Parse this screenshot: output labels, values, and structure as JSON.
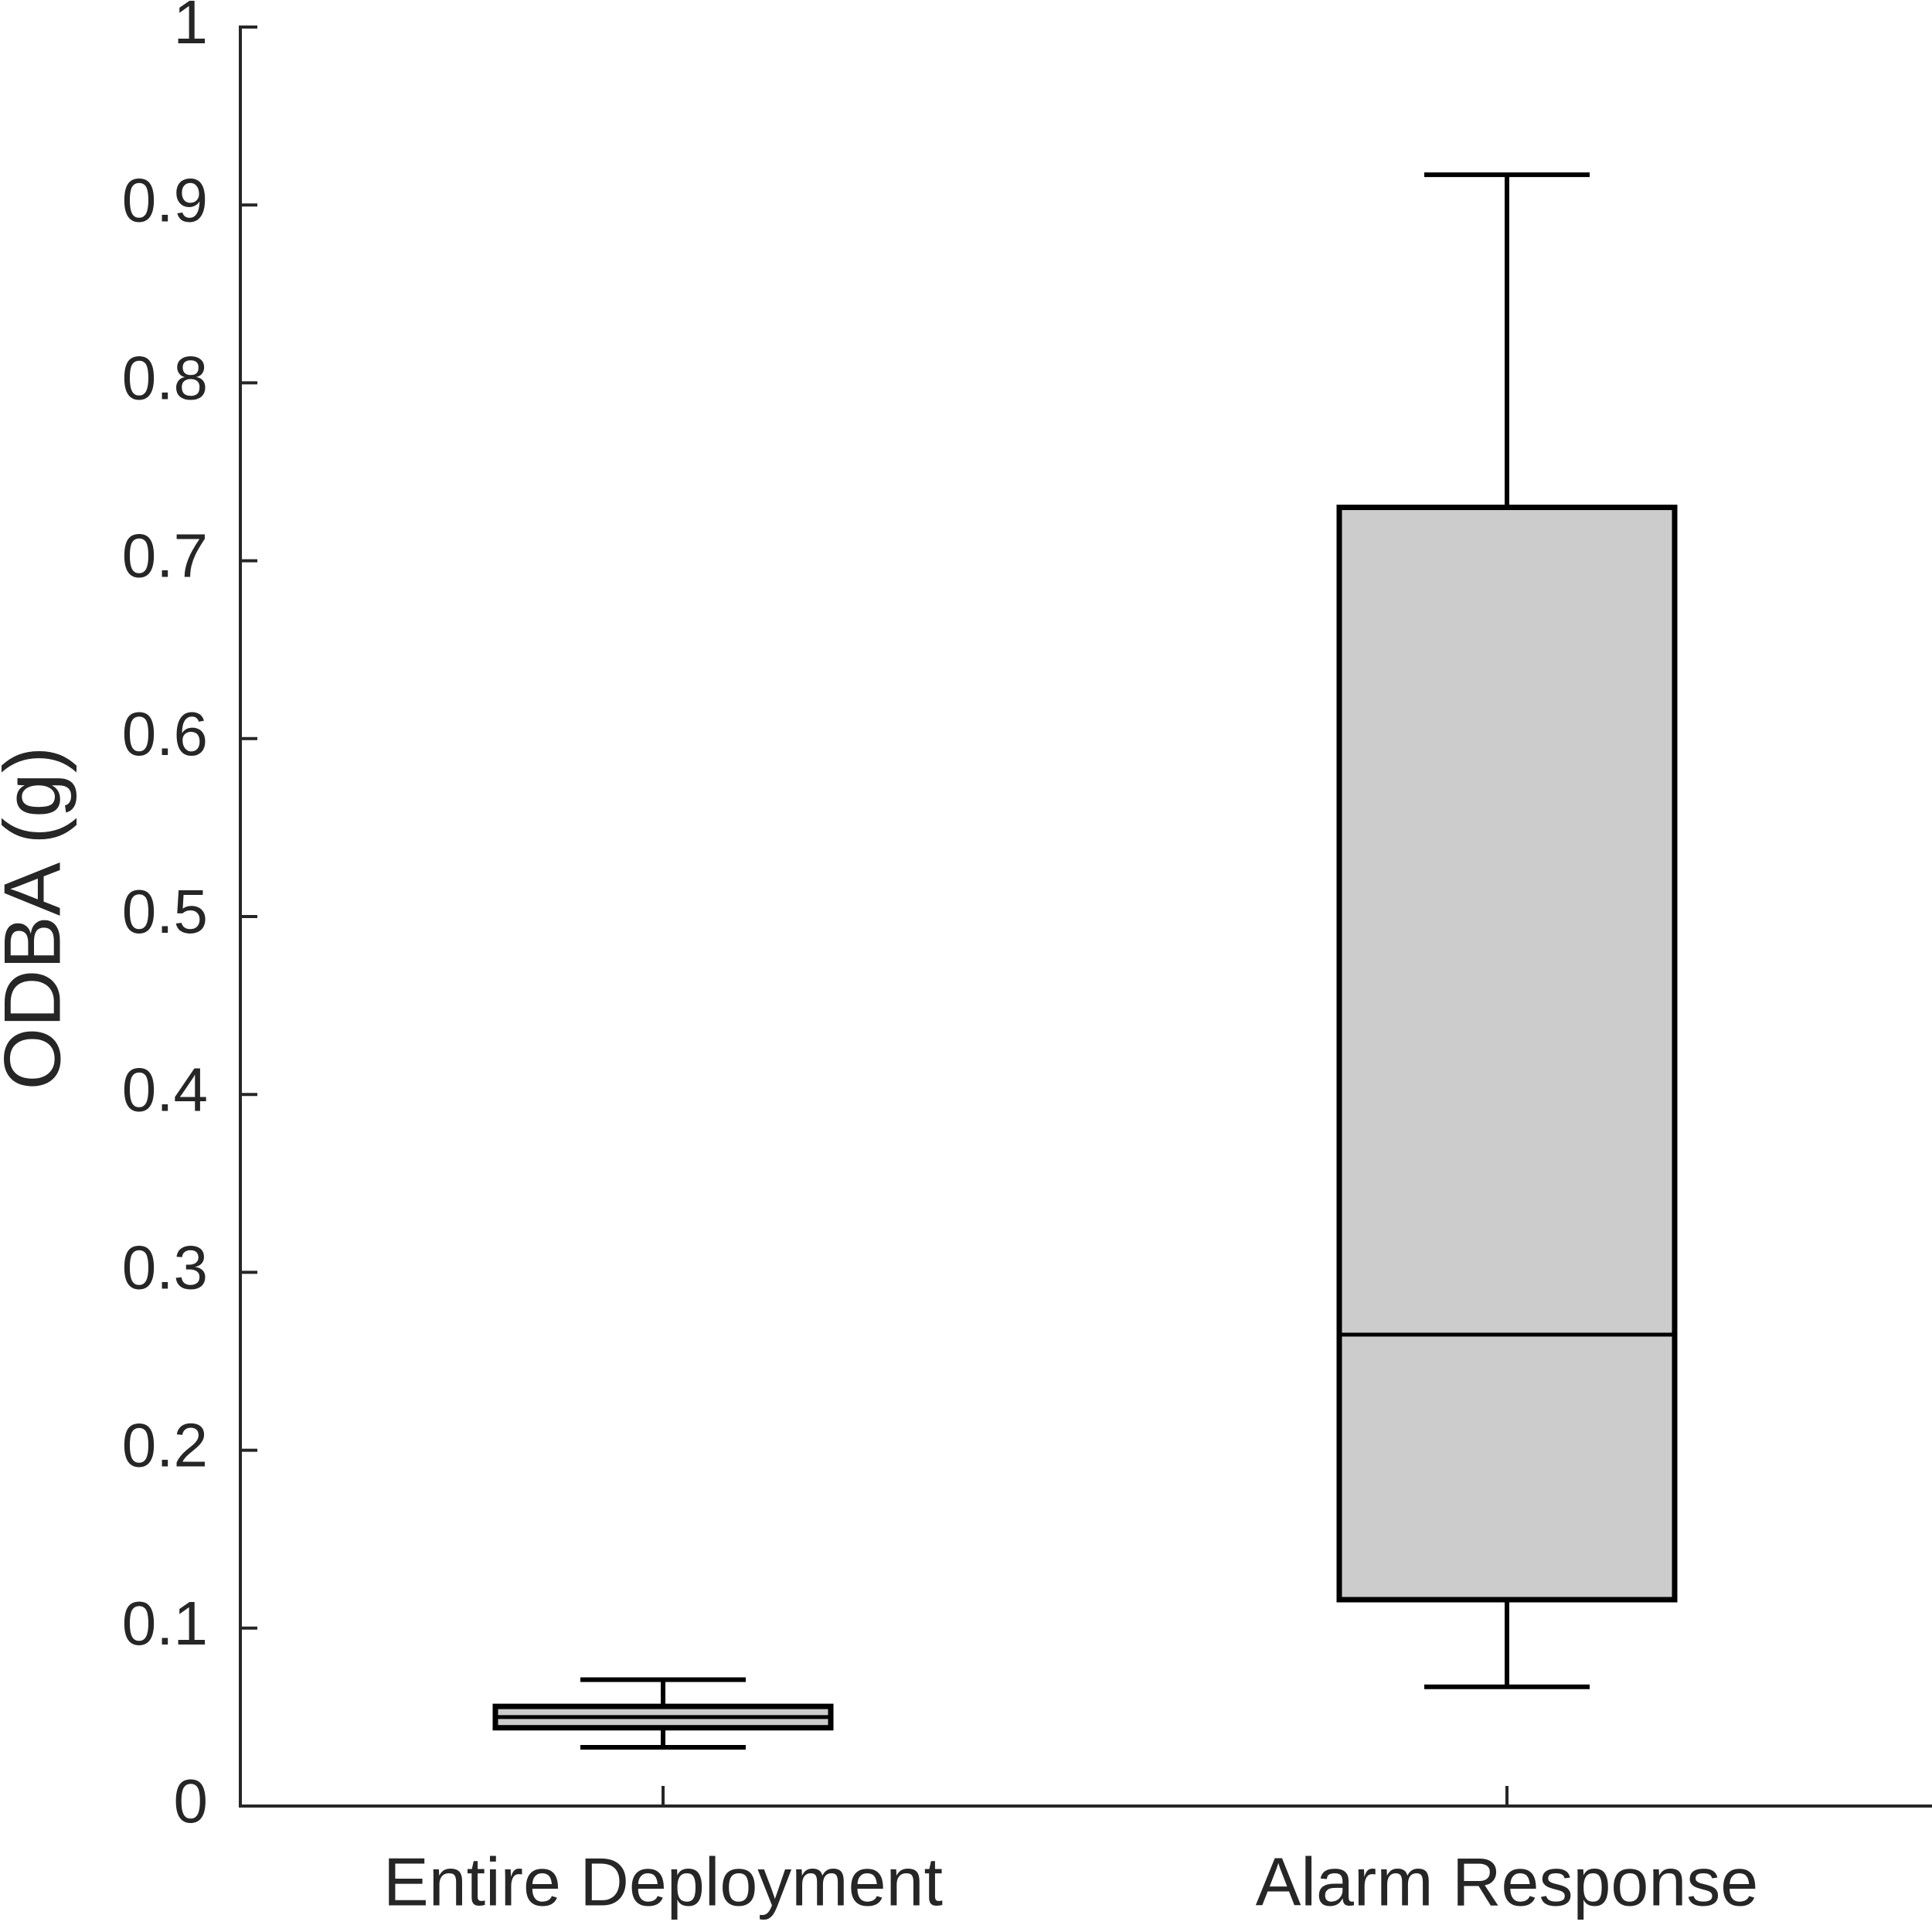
{
  "chart_data": {
    "type": "box",
    "y_label": "ODBA (g)",
    "categories": [
      "Entire Deployment",
      "Alarm Response"
    ],
    "whisker_low": [
      0.033,
      0.067
    ],
    "q1": [
      0.044,
      0.116
    ],
    "median": [
      0.05,
      0.265
    ],
    "q3": [
      0.056,
      0.73
    ],
    "whisker_high": [
      0.071,
      0.917
    ],
    "color": "#cccccc",
    "ylim": [
      0,
      1
    ],
    "yticks": [
      0,
      0.1,
      0.2,
      0.3,
      0.4,
      0.5,
      0.6,
      0.7,
      0.8,
      0.9,
      1
    ]
  }
}
